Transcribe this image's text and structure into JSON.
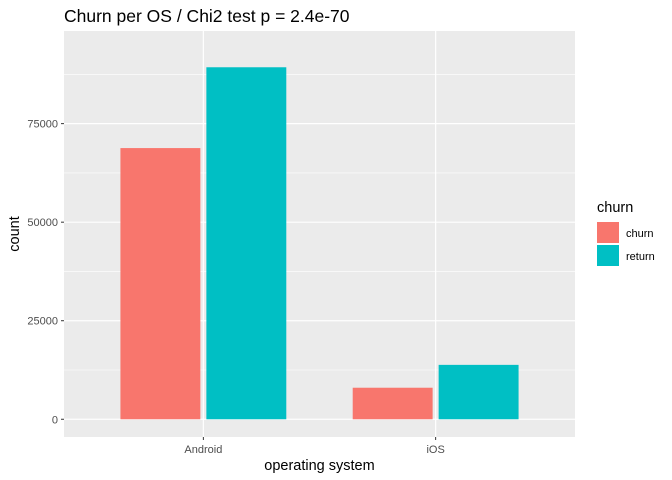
{
  "chart_data": {
    "type": "bar",
    "title": "Churn per OS / Chi2 test p = 2.4e-70",
    "xlabel": "operating system",
    "ylabel": "count",
    "categories": [
      "Android",
      "iOS"
    ],
    "series": [
      {
        "name": "churn",
        "values": [
          68800,
          8000
        ],
        "color": "#F8766D"
      },
      {
        "name": "return",
        "values": [
          89300,
          13800
        ],
        "color": "#00BFC4"
      }
    ],
    "yticks": [
      0,
      25000,
      50000,
      75000
    ],
    "ytick_labels": [
      "0",
      "25000",
      "50000",
      "75000"
    ],
    "ylim": [
      -4500,
      98500
    ],
    "grid": true,
    "legend": {
      "title": "churn",
      "position": "right"
    },
    "panel_background": "#EBEBEB",
    "grid_color": "#FFFFFF"
  }
}
